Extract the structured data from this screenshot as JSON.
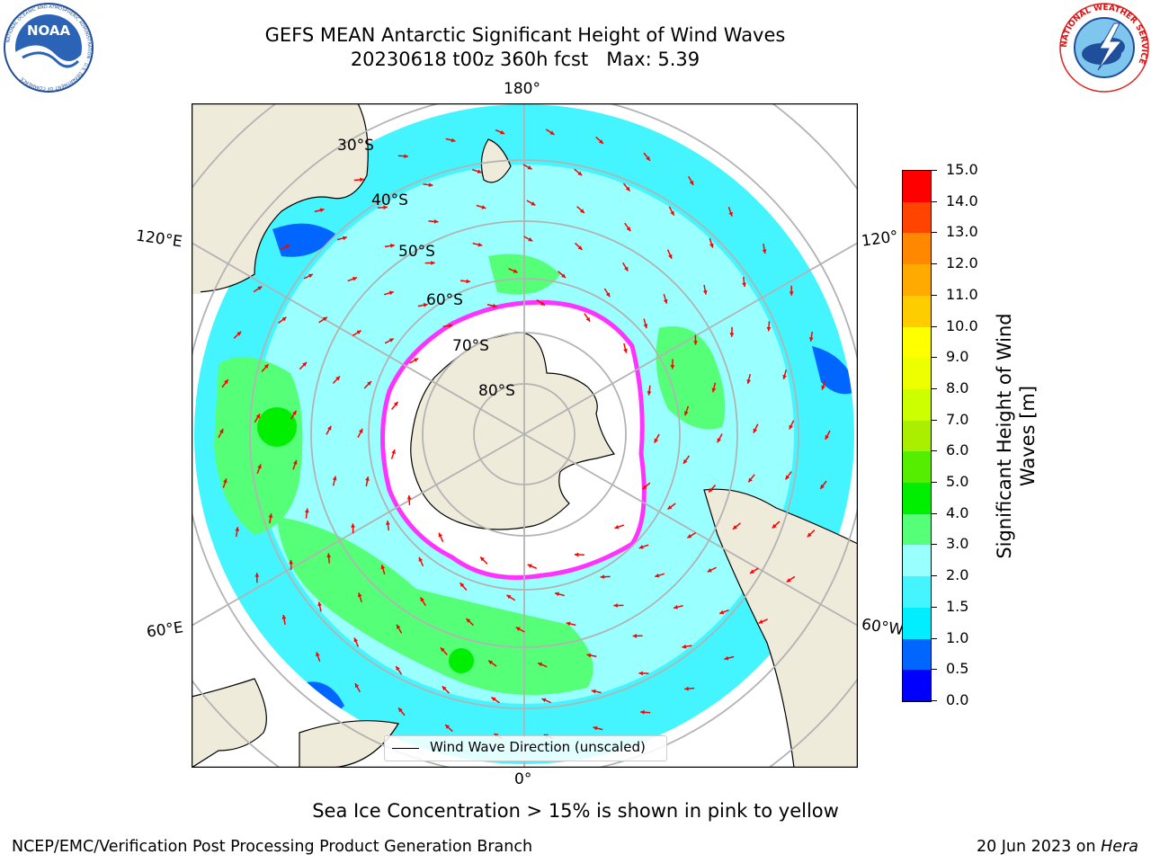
{
  "title": {
    "line1": "GEFS MEAN Antarctic Significant Height of Wind Waves",
    "line2": "20230618 t00z 360h fcst   Max: 5.39"
  },
  "map": {
    "projection": "south-polar-stereographic",
    "longitude_labels": {
      "top": "180°",
      "bottom": "0°",
      "upper_left": "120°E",
      "upper_right": "120°",
      "lower_left": "60°E",
      "lower_right": "60°W"
    },
    "latitude_labels": [
      "30°S",
      "40°S",
      "50°S",
      "60°S",
      "70°S",
      "80°S"
    ],
    "legend_label": "Wind Wave Direction (unscaled)",
    "colors": {
      "land": "#efebdb",
      "sea_ice_white": "#ffffff",
      "sea_ice_edge": "#ff33ff",
      "arrows": "#ff0000",
      "grid": "#b3b3b3"
    }
  },
  "colorbar": {
    "title_line1": "Significant Height of Wind",
    "title_line2": "Waves [m]",
    "tick_labels": [
      "0.0",
      "0.5",
      "1.0",
      "1.5",
      "2.0",
      "3.0",
      "4.0",
      "5.0",
      "6.0",
      "7.0",
      "8.0",
      "9.0",
      "10.0",
      "11.0",
      "12.0",
      "13.0",
      "14.0",
      "15.0"
    ],
    "colors": [
      "#0000ff",
      "#0066ff",
      "#00eeff",
      "#44f5ff",
      "#99ffff",
      "#55ff77",
      "#00ee00",
      "#55ee00",
      "#aaee00",
      "#ccff00",
      "#eeff00",
      "#ffff00",
      "#ffcc00",
      "#ffaa00",
      "#ff8800",
      "#ff4400",
      "#ff0000"
    ]
  },
  "caption": "Sea Ice Concentration > 15% is shown in pink to yellow",
  "footer": {
    "left": "NCEP/EMC/Verification Post Processing Product Generation Branch",
    "date": "20 Jun 2023 on ",
    "host": "Hera"
  },
  "logos": {
    "noaa_text": "NOAA",
    "noaa_ring_text": "NATIONAL OCEANIC AND ATMOSPHERIC ADMINISTRATION · U.S. DEPARTMENT OF COMMERCE",
    "nws_ring_text": "NATIONAL WEATHER SERVICE"
  }
}
